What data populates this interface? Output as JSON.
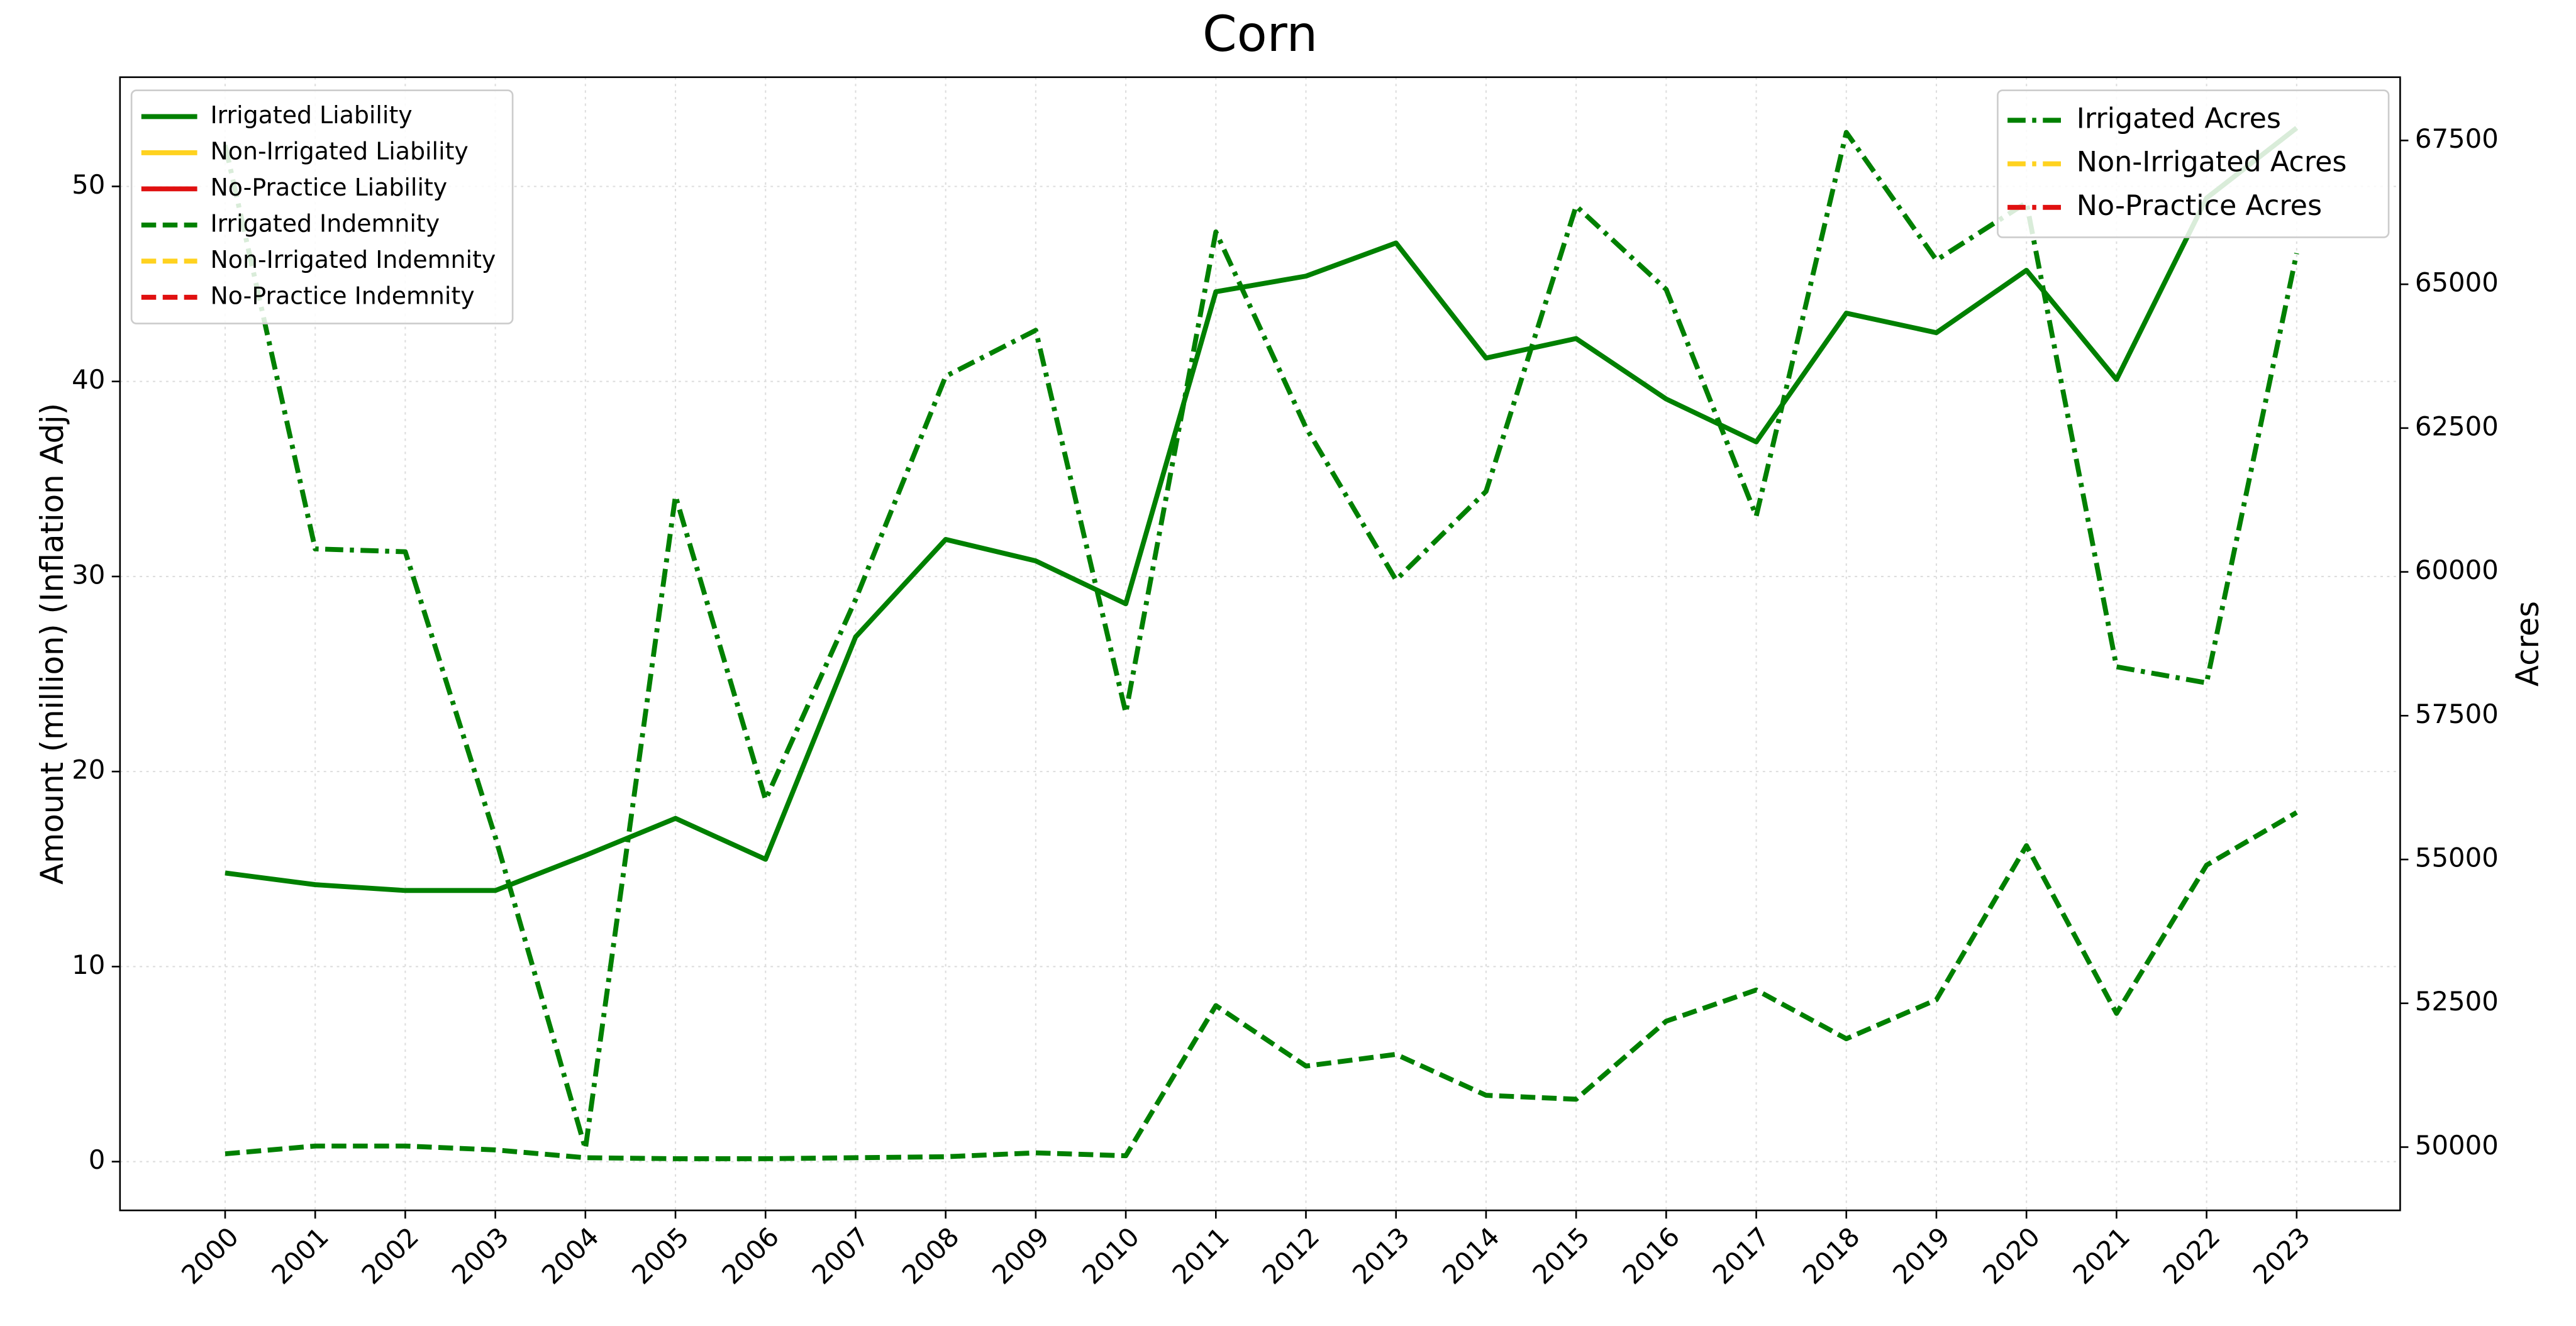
{
  "chart_data": {
    "type": "line",
    "title": "Corn",
    "ylabel": "Amount (million) (Inflation Adj)",
    "y2label": "Acres",
    "categories": [
      "2000",
      "2001",
      "2002",
      "2003",
      "2004",
      "2005",
      "2006",
      "2007",
      "2008",
      "2009",
      "2010",
      "2011",
      "2012",
      "2013",
      "2014",
      "2015",
      "2016",
      "2017",
      "2018",
      "2019",
      "2020",
      "2021",
      "2022",
      "2023"
    ],
    "ylim": [
      -2.5,
      55.6
    ],
    "yticks": [
      0,
      10,
      20,
      30,
      40,
      50
    ],
    "y2lim": [
      48900,
      68600
    ],
    "y2ticks": [
      50000,
      52500,
      55000,
      57500,
      60000,
      62500,
      65000,
      67500
    ],
    "grid": true,
    "legend_loc": "upper left",
    "legend2_loc": "upper right",
    "series": [
      {
        "name": "Irrigated Liability",
        "color": "#008000",
        "linestyle": "solid",
        "values": [
          14.8,
          14.2,
          13.9,
          13.9,
          15.7,
          17.6,
          15.5,
          26.9,
          31.9,
          30.8,
          28.6,
          44.6,
          45.4,
          47.1,
          41.2,
          42.2,
          39.1,
          36.9,
          43.5,
          42.5,
          45.7,
          40.1,
          49.4,
          53.0
        ]
      },
      {
        "name": "Non-Irrigated Liability",
        "color": "#ffd21f",
        "linestyle": "solid",
        "values": [
          null,
          null,
          null,
          null,
          null,
          null,
          null,
          null,
          null,
          null,
          null,
          null,
          null,
          null,
          null,
          null,
          null,
          null,
          null,
          null,
          null,
          null,
          null,
          null
        ]
      },
      {
        "name": "No-Practice Liability",
        "color": "#e01010",
        "linestyle": "solid",
        "values": [
          null,
          null,
          null,
          null,
          null,
          null,
          null,
          null,
          null,
          null,
          null,
          null,
          null,
          null,
          null,
          null,
          null,
          null,
          null,
          null,
          null,
          null,
          null,
          null
        ]
      },
      {
        "name": "Irrigated Indemnity",
        "color": "#008000",
        "linestyle": "dashed",
        "values": [
          0.4,
          0.8,
          0.8,
          0.6,
          0.2,
          0.15,
          0.15,
          0.2,
          0.25,
          0.45,
          0.3,
          8.0,
          4.9,
          5.5,
          3.4,
          3.2,
          7.2,
          8.8,
          6.3,
          8.3,
          16.2,
          7.6,
          15.2,
          17.9
        ]
      },
      {
        "name": "Non-Irrigated Indemnity",
        "color": "#ffd21f",
        "linestyle": "dashed",
        "values": [
          null,
          null,
          null,
          null,
          null,
          null,
          null,
          null,
          null,
          null,
          null,
          null,
          null,
          null,
          null,
          null,
          null,
          null,
          null,
          null,
          null,
          null,
          null,
          null
        ]
      },
      {
        "name": "No-Practice Indemnity",
        "color": "#e01010",
        "linestyle": "dashed",
        "values": [
          null,
          null,
          null,
          null,
          null,
          null,
          null,
          null,
          null,
          null,
          null,
          null,
          null,
          null,
          null,
          null,
          null,
          null,
          null,
          null,
          null,
          null,
          null,
          null
        ]
      },
      {
        "name": "Irrigated Acres",
        "color": "#008000",
        "linestyle": "dashdot",
        "axis": "y2",
        "values": [
          67420,
          60400,
          60350,
          55390,
          49970,
          61320,
          56040,
          59520,
          63400,
          64200,
          57550,
          65910,
          62510,
          59860,
          61400,
          66360,
          64910,
          60970,
          67640,
          65420,
          66420,
          58350,
          58070,
          65540
        ]
      },
      {
        "name": "Non-Irrigated Acres",
        "color": "#ffd21f",
        "linestyle": "dashdot",
        "axis": "y2",
        "values": [
          null,
          null,
          null,
          null,
          null,
          null,
          null,
          null,
          null,
          null,
          null,
          null,
          null,
          null,
          null,
          null,
          null,
          null,
          null,
          null,
          null,
          null,
          null,
          null
        ]
      },
      {
        "name": "No-Practice Acres",
        "color": "#e01010",
        "linestyle": "dashdot",
        "axis": "y2",
        "values": [
          null,
          null,
          null,
          null,
          null,
          null,
          null,
          null,
          null,
          null,
          null,
          null,
          null,
          null,
          null,
          null,
          null,
          null,
          null,
          null,
          null,
          null,
          null,
          null
        ]
      }
    ]
  }
}
